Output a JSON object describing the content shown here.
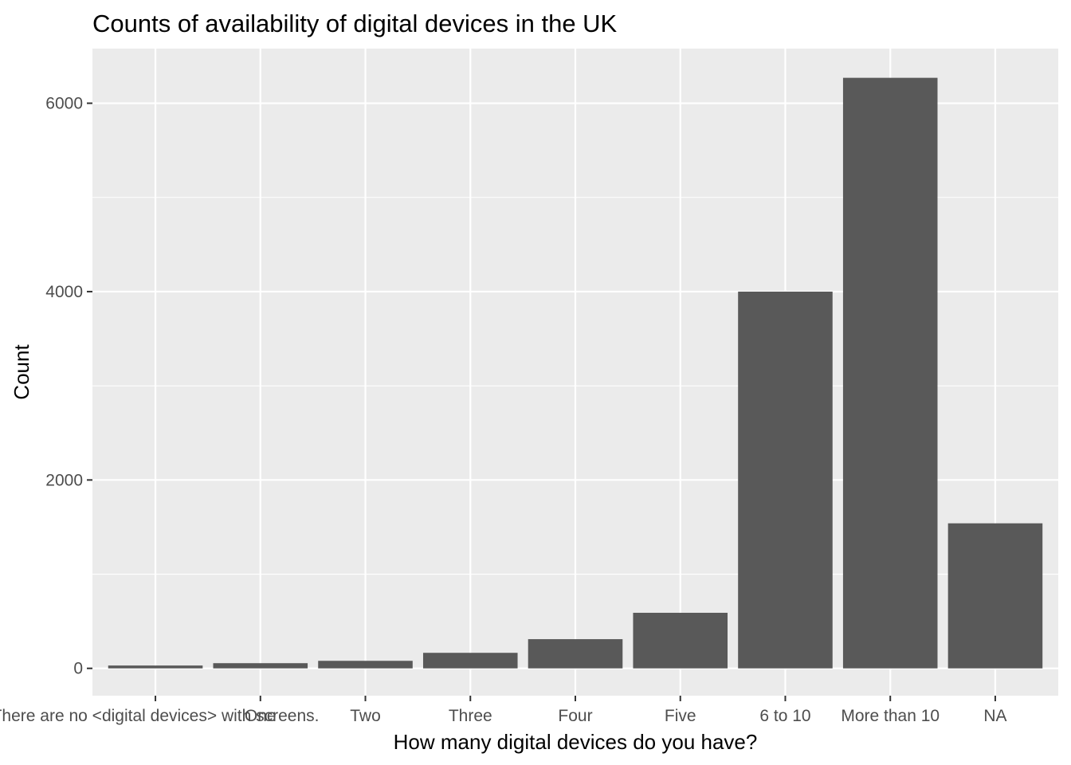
{
  "chart_data": {
    "type": "bar",
    "title": "Counts of availability of digital devices in the UK",
    "xlabel": "How many digital devices do you have?",
    "ylabel": "Count",
    "categories": [
      "There are no <digital devices> with screens.",
      "One",
      "Two",
      "Three",
      "Four",
      "Five",
      "6 to 10",
      "More than 10",
      "NA"
    ],
    "values": [
      30,
      55,
      80,
      165,
      310,
      590,
      4000,
      6270,
      1540
    ],
    "yticks": [
      0,
      2000,
      4000,
      6000
    ],
    "ylim": [
      -290,
      6580
    ],
    "grid": true,
    "legend": "none",
    "colors": {
      "bar": "#595959",
      "panel": "#ebebeb",
      "grid": "#ffffff",
      "tick_text": "#4d4d4d"
    }
  }
}
